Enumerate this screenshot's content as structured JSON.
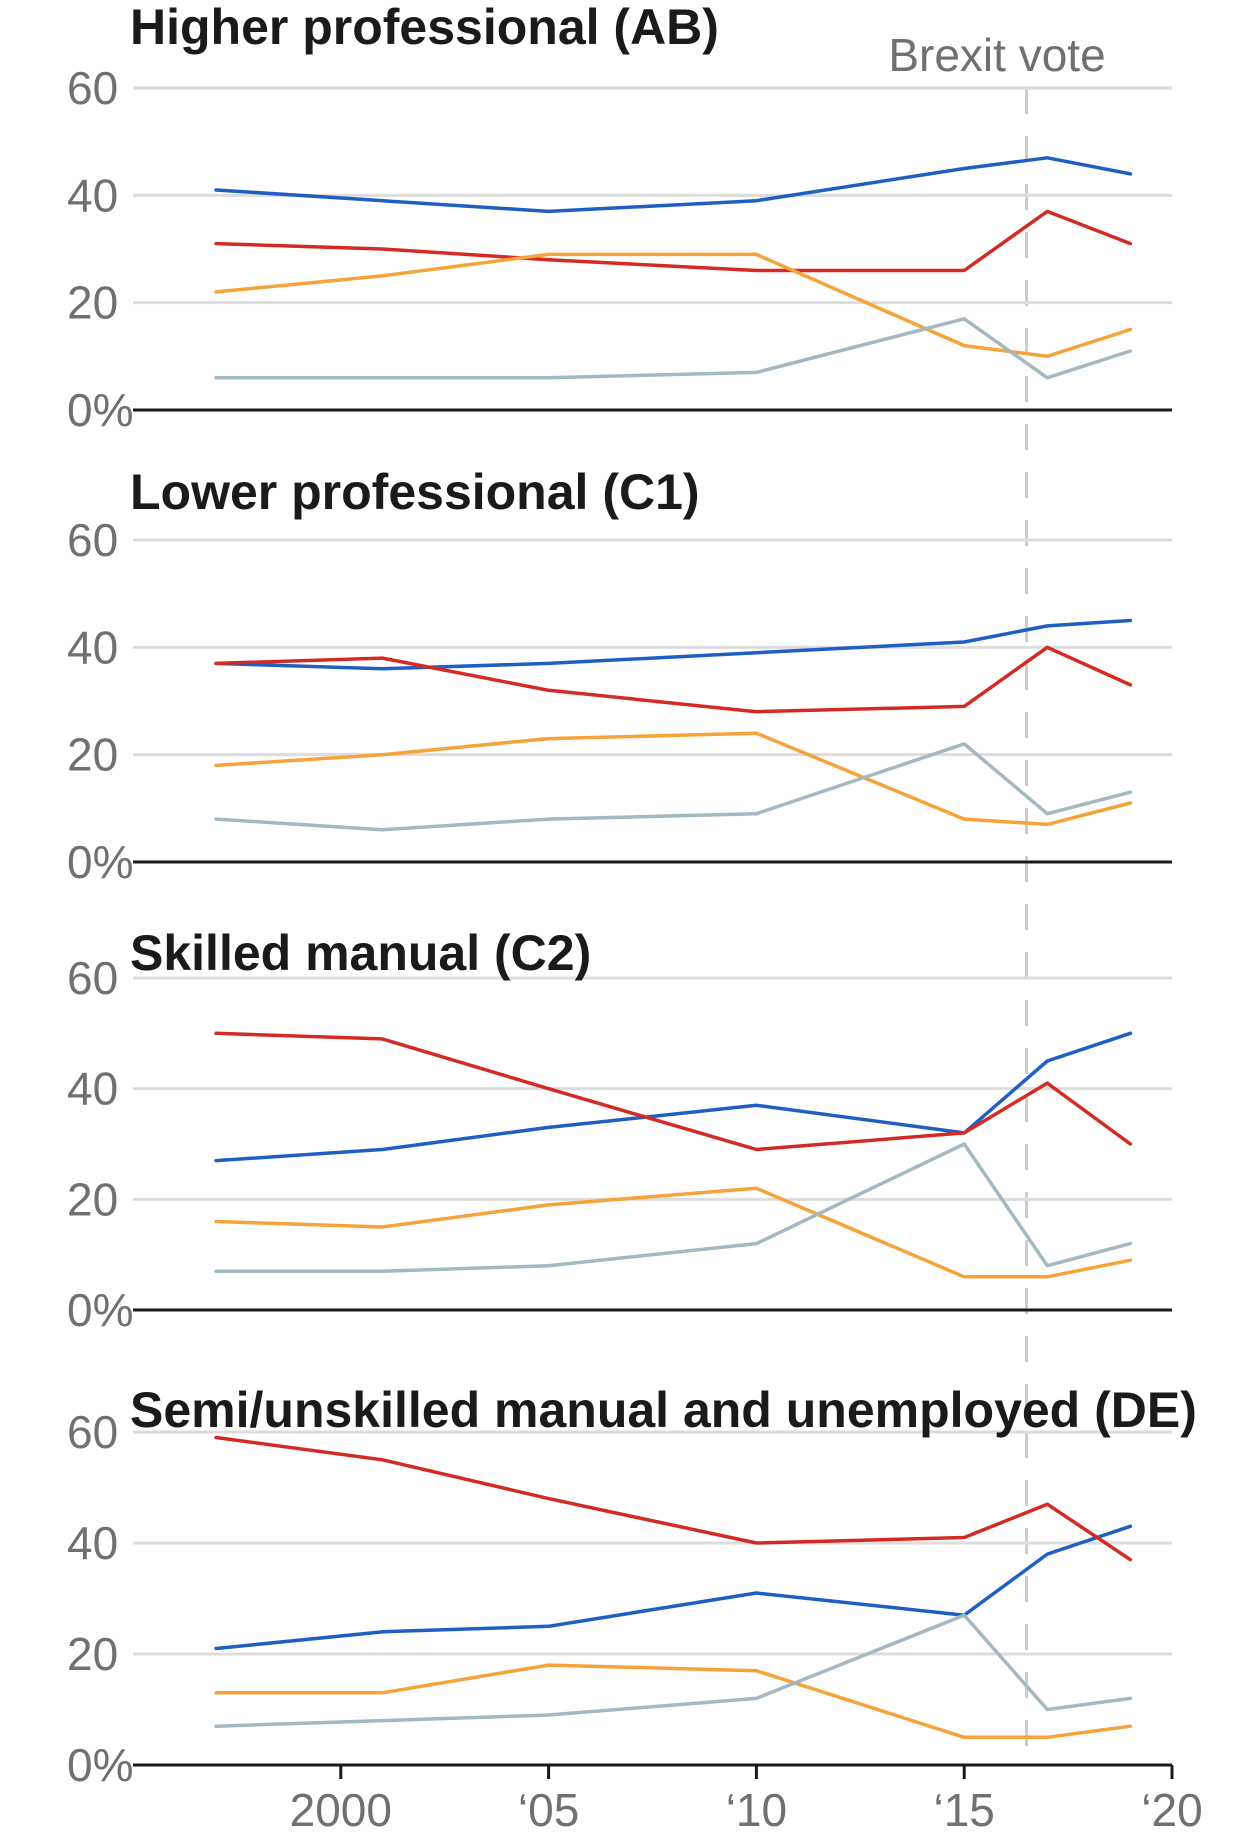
{
  "chart_data": {
    "type": "line",
    "x": [
      1997,
      2001,
      2005,
      2010,
      2015,
      2017,
      2019
    ],
    "xlim": [
      1995,
      2020
    ],
    "ylim": [
      0,
      60
    ],
    "x_ticks": [
      {
        "value": 2000,
        "label": "2000"
      },
      {
        "value": 2005,
        "label": "‘05"
      },
      {
        "value": 2010,
        "label": "‘10"
      },
      {
        "value": 2015,
        "label": "‘15"
      },
      {
        "value": 2020,
        "label": "‘20"
      }
    ],
    "y_ticks": [
      {
        "value": 0,
        "label": "0%"
      },
      {
        "value": 20,
        "label": "20"
      },
      {
        "value": 40,
        "label": "40"
      },
      {
        "value": 60,
        "label": "60"
      }
    ],
    "grid": true,
    "legend": "none",
    "annotation": {
      "label": "Brexit vote",
      "x": 2016.5,
      "style": "dashed vertical line"
    },
    "series_colors": {
      "blue": "#1f5fc4",
      "red": "#d42a24",
      "orange": "#f5a33a",
      "grey": "#a3b8c0"
    },
    "panels": [
      {
        "title": "Higher professional (AB)",
        "series": [
          {
            "color": "blue",
            "values": [
              41,
              39,
              37,
              39,
              45,
              47,
              44
            ]
          },
          {
            "color": "red",
            "values": [
              31,
              30,
              28,
              26,
              26,
              37,
              31
            ]
          },
          {
            "color": "orange",
            "values": [
              22,
              25,
              29,
              29,
              12,
              10,
              15
            ]
          },
          {
            "color": "grey",
            "values": [
              6,
              6,
              6,
              7,
              17,
              6,
              11
            ]
          }
        ]
      },
      {
        "title": "Lower professional (C1)",
        "series": [
          {
            "color": "blue",
            "values": [
              37,
              36,
              37,
              39,
              41,
              44,
              45
            ]
          },
          {
            "color": "red",
            "values": [
              37,
              38,
              32,
              28,
              29,
              40,
              33
            ]
          },
          {
            "color": "orange",
            "values": [
              18,
              20,
              23,
              24,
              8,
              7,
              11
            ]
          },
          {
            "color": "grey",
            "values": [
              8,
              6,
              8,
              9,
              22,
              9,
              13
            ]
          }
        ]
      },
      {
        "title": "Skilled manual (C2)",
        "series": [
          {
            "color": "blue",
            "values": [
              27,
              29,
              33,
              37,
              32,
              45,
              50
            ]
          },
          {
            "color": "red",
            "values": [
              50,
              49,
              40,
              29,
              32,
              41,
              30
            ]
          },
          {
            "color": "orange",
            "values": [
              16,
              15,
              19,
              22,
              6,
              6,
              9
            ]
          },
          {
            "color": "grey",
            "values": [
              7,
              7,
              8,
              12,
              30,
              8,
              12
            ]
          }
        ]
      },
      {
        "title": "Semi/unskilled manual and unemployed (DE)",
        "series": [
          {
            "color": "blue",
            "values": [
              21,
              24,
              25,
              31,
              27,
              38,
              43
            ]
          },
          {
            "color": "red",
            "values": [
              59,
              55,
              48,
              40,
              41,
              47,
              37
            ]
          },
          {
            "color": "orange",
            "values": [
              13,
              13,
              18,
              17,
              5,
              5,
              7
            ]
          },
          {
            "color": "grey",
            "values": [
              7,
              8,
              9,
              12,
              27,
              10,
              12
            ]
          }
        ]
      }
    ]
  }
}
